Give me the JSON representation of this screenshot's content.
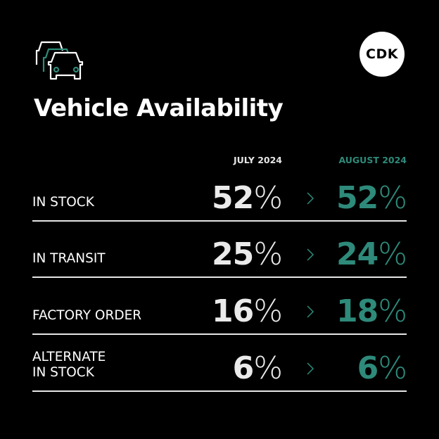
{
  "logo": "CDK",
  "title": "Vehicle Availability",
  "columns": [
    "JULY 2024",
    "AUGUST 2024"
  ],
  "accent_color": "#2e8a7a",
  "rows": [
    {
      "label": "IN STOCK",
      "july": "52",
      "august": "52"
    },
    {
      "label": "IN TRANSIT",
      "july": "25",
      "august": "24"
    },
    {
      "label": "FACTORY ORDER",
      "july": "16",
      "august": "18"
    },
    {
      "label": "ALTERNATE\nIN STOCK",
      "july": "6",
      "august": "6"
    }
  ],
  "pct": "%"
}
